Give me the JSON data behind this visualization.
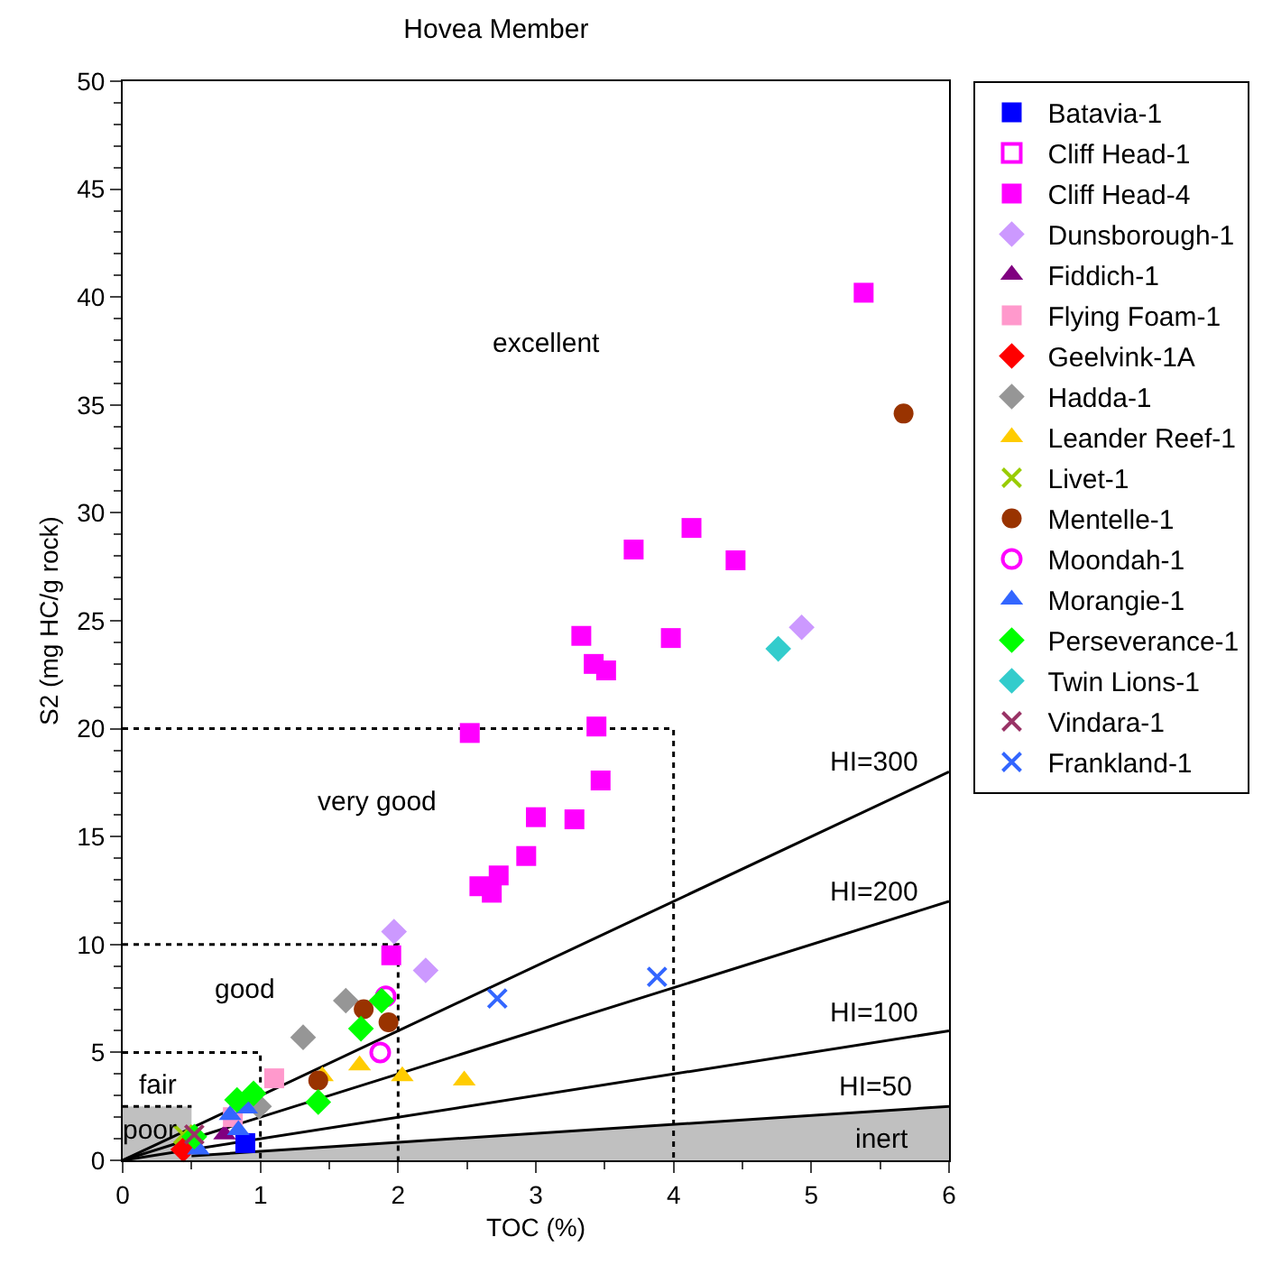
{
  "chart_data": {
    "type": "scatter",
    "title": "Hovea Member",
    "xlabel": "TOC (%)",
    "ylabel": "S2 (mg HC/g rock)",
    "xlim": [
      0,
      6
    ],
    "xticks": [
      0,
      1,
      2,
      3,
      4,
      5,
      6
    ],
    "ylim": [
      0,
      50
    ],
    "yticks": [
      0,
      5,
      10,
      15,
      20,
      25,
      30,
      35,
      40,
      45,
      50
    ],
    "grid": false,
    "legend": "right",
    "series": [
      {
        "type": "area",
        "color": "#c0c0c0",
        "line_style": "solid",
        "x": [
          0,
          6
        ],
        "values": [
          0,
          2.5
        ]
      },
      {
        "type": "area",
        "color": "#c0c0c0",
        "line_style": "dotted",
        "x": [
          0,
          0.5
        ],
        "values": [
          2.5,
          2.5
        ]
      },
      {
        "type": "line",
        "color": "#000000",
        "line_style": "dotted",
        "x": [
          0,
          1,
          1
        ],
        "values": [
          5,
          5,
          0
        ]
      },
      {
        "type": "line",
        "color": "#000000",
        "line_style": "dotted",
        "x": [
          0,
          2,
          2
        ],
        "values": [
          10,
          10,
          0
        ]
      },
      {
        "type": "line",
        "color": "#000000",
        "line_style": "dotted",
        "x": [
          0,
          4,
          4
        ],
        "values": [
          20,
          20,
          0
        ]
      },
      {
        "type": "line",
        "color": "#000000",
        "line_style": "solid",
        "x": [
          0,
          6
        ],
        "values": [
          0,
          18
        ]
      },
      {
        "type": "line",
        "color": "#000000",
        "line_style": "solid",
        "x": [
          0,
          6
        ],
        "values": [
          0,
          12
        ]
      },
      {
        "type": "line",
        "color": "#000000",
        "line_style": "solid",
        "x": [
          0,
          6
        ],
        "values": [
          0,
          6
        ]
      },
      {
        "name": "Batavia-1",
        "color": "#0000ff",
        "marker": "square",
        "x": [
          0.89
        ],
        "values": [
          0.8
        ]
      },
      {
        "name": "Cliff Head-1",
        "color": "#ff00ff",
        "marker": "square-open",
        "x": [
          null
        ],
        "values": [
          null
        ]
      },
      {
        "name": "Cliff Head-4",
        "color": "#ff00ff",
        "marker": "square",
        "x": [
          5.38,
          4.13,
          3.71,
          4.45,
          3.33,
          3.98,
          3.42,
          3.51,
          3.44,
          2.52,
          3.47,
          3.0,
          3.28,
          2.93,
          2.73,
          2.59,
          2.68,
          1.95
        ],
        "values": [
          40.2,
          29.3,
          28.3,
          27.8,
          24.3,
          24.2,
          23.0,
          22.7,
          20.1,
          19.8,
          17.6,
          15.9,
          15.8,
          14.1,
          13.2,
          12.7,
          12.4,
          9.5
        ]
      },
      {
        "name": "Dunsborough-1",
        "color": "#cc99ff",
        "marker": "diamond",
        "x": [
          4.93,
          1.97,
          2.2
        ],
        "values": [
          24.7,
          10.6,
          8.8
        ]
      },
      {
        "name": "Fiddich-1",
        "color": "#800080",
        "marker": "triangle",
        "x": [
          0.74
        ],
        "values": [
          1.2
        ]
      },
      {
        "name": "Flying Foam-1",
        "color": "#ff99cc",
        "marker": "square",
        "x": [
          1.1,
          0.8
        ],
        "values": [
          3.8,
          2.0
        ]
      },
      {
        "name": "Geelvink-1A",
        "color": "#ff0000",
        "marker": "diamond",
        "x": [
          0.44
        ],
        "values": [
          0.5
        ]
      },
      {
        "name": "Hadda-1",
        "color": "#969696",
        "marker": "diamond",
        "x": [
          1.62,
          1.31,
          0.99
        ],
        "values": [
          7.4,
          5.7,
          2.5
        ]
      },
      {
        "name": "Leander Reef-1",
        "color": "#ffcc00",
        "marker": "triangle",
        "x": [
          1.72,
          2.03,
          2.48,
          1.45
        ],
        "values": [
          4.4,
          3.9,
          3.7,
          3.9
        ]
      },
      {
        "name": "Livet-1",
        "color": "#99cc00",
        "marker": "cross",
        "x": [
          0.44
        ],
        "values": [
          1.2
        ]
      },
      {
        "name": "Mentelle-1",
        "color": "#993300",
        "marker": "circle",
        "x": [
          5.67,
          1.75,
          1.93,
          1.42
        ],
        "values": [
          34.6,
          7.0,
          6.4,
          3.7
        ]
      },
      {
        "name": "Moondah-1",
        "color": "#ff00ff",
        "marker": "circle-open",
        "x": [
          1.91,
          1.87
        ],
        "values": [
          7.6,
          5.0
        ]
      },
      {
        "name": "Morangie-1",
        "color": "#3366ff",
        "marker": "triangle",
        "x": [
          0.78,
          0.9,
          0.84,
          0.55
        ],
        "values": [
          2.1,
          2.4,
          1.4,
          0.5
        ]
      },
      {
        "name": "Perseverance-1",
        "color": "#00ff00",
        "marker": "diamond",
        "x": [
          1.88,
          1.73,
          1.42,
          0.83,
          0.95,
          0.52
        ],
        "values": [
          7.4,
          6.1,
          2.7,
          2.8,
          3.1,
          1.1
        ]
      },
      {
        "name": "Twin Lions-1",
        "color": "#33cccc",
        "marker": "diamond",
        "x": [
          4.76
        ],
        "values": [
          23.7
        ]
      },
      {
        "name": "Vindara-1",
        "color": "#993366",
        "marker": "cross",
        "x": [
          0.52
        ],
        "values": [
          1.2
        ]
      },
      {
        "name": "Frankland-1",
        "color": "#3366ff",
        "marker": "cross",
        "x": [
          2.72,
          3.88
        ],
        "values": [
          7.5,
          8.5
        ]
      }
    ],
    "annotations": [
      "excellent",
      "very good",
      "good",
      "fair",
      "poor",
      "HI=300",
      "HI=200",
      "HI=100",
      "HI=50",
      "inert"
    ]
  }
}
